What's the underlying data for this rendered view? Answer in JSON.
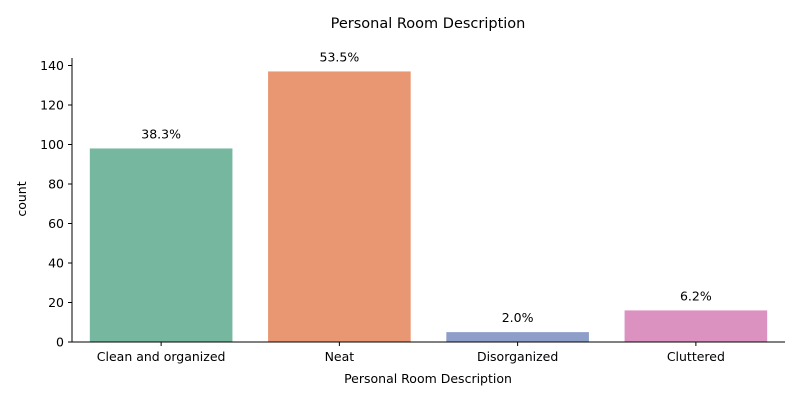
{
  "chart_data": {
    "type": "bar",
    "title": "Personal Room Description",
    "xlabel": "Personal Room Description",
    "ylabel": "count",
    "categories": [
      "Clean and organized",
      "Neat",
      "Disorganized",
      "Cluttered"
    ],
    "values": [
      98,
      137,
      5,
      16
    ],
    "data_labels": [
      "38.3%",
      "53.5%",
      "2.0%",
      "6.2%"
    ],
    "colors": [
      "#76b7a0",
      "#e99672",
      "#8d9fc8",
      "#dc92c1"
    ],
    "yticks": [
      0,
      20,
      40,
      60,
      80,
      100,
      120,
      140
    ],
    "ylim": [
      0,
      143.8
    ],
    "grid": false,
    "legend": "none"
  }
}
